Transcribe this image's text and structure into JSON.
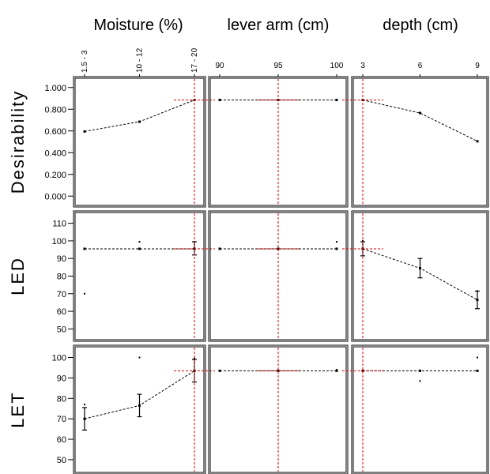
{
  "chart_data": {
    "type": "line",
    "title": "",
    "columns": [
      {
        "id": "moisture",
        "label": "Moisture (%)",
        "categories": [
          "1.5 - 3",
          "10 - 12",
          "17 - 20"
        ],
        "current": 2
      },
      {
        "id": "lever",
        "label": "lever arm (cm)",
        "categories": [
          "90",
          "95",
          "100"
        ],
        "current": 1
      },
      {
        "id": "depth",
        "label": "depth (cm)",
        "categories": [
          "3",
          "6",
          "9"
        ],
        "current": 0
      }
    ],
    "rows": [
      {
        "id": "desirability",
        "label": "Desirability",
        "ylim": [
          -0.1,
          1.1
        ],
        "ticks": [
          0.0,
          0.2,
          0.4,
          0.6,
          0.8,
          1.0
        ],
        "tick_labels": [
          "0.000",
          "0.200",
          "0.400",
          "0.600",
          "0.800",
          "1.000"
        ],
        "current": 0.885,
        "series": [
          {
            "column": "moisture",
            "values": [
              0.595,
              0.685,
              0.885
            ]
          },
          {
            "column": "lever",
            "values": [
              0.885,
              0.885,
              0.885
            ]
          },
          {
            "column": "depth",
            "values": [
              0.885,
              0.765,
              0.505
            ]
          }
        ]
      },
      {
        "id": "led",
        "label": "LED",
        "ylim": [
          43,
          117
        ],
        "ticks": [
          50,
          60,
          70,
          80,
          90,
          100,
          110
        ],
        "tick_labels": [
          "50",
          "60",
          "70",
          "80",
          "90",
          "100",
          "110"
        ],
        "current": 95.5,
        "series": [
          {
            "column": "moisture",
            "values": [
              95.5,
              95.5,
              95.5
            ],
            "errors": [
              null,
              null,
              [
                92,
                99.5
              ]
            ],
            "points": [
              [
                0,
                70
              ],
              [
                1,
                99.5
              ],
              [
                2,
                99.5
              ]
            ]
          },
          {
            "column": "lever",
            "values": [
              95.5,
              95.5,
              95.5
            ],
            "errors": [
              null,
              null,
              null
            ],
            "points": [
              [
                2,
                99.5
              ]
            ]
          },
          {
            "column": "depth",
            "values": [
              95.5,
              84.5,
              66.5
            ],
            "errors": [
              [
                91.5,
                99.5
              ],
              [
                79,
                90
              ],
              [
                61.5,
                71.5
              ]
            ],
            "points": [
              [
                0,
                100
              ],
              [
                2,
                71.5
              ]
            ]
          }
        ]
      },
      {
        "id": "let",
        "label": "LET",
        "ylim": [
          43,
          106
        ],
        "ticks": [
          50,
          60,
          70,
          80,
          90,
          100
        ],
        "tick_labels": [
          "50",
          "60",
          "70",
          "80",
          "90",
          "100"
        ],
        "current": 93.5,
        "series": [
          {
            "column": "moisture",
            "values": [
              70,
              76.5,
              93.5
            ],
            "errors": [
              [
                64.5,
                75.5
              ],
              [
                71,
                82
              ],
              [
                88,
                99
              ]
            ],
            "points": [
              [
                0,
                77
              ],
              [
                1,
                100
              ],
              [
                2,
                99.5
              ]
            ]
          },
          {
            "column": "lever",
            "values": [
              93.5,
              93.5,
              93.5
            ],
            "errors": [
              null,
              null,
              null
            ],
            "points": [
              [
                2,
                94
              ]
            ]
          },
          {
            "column": "depth",
            "values": [
              93.5,
              93.5,
              93.5
            ],
            "errors": [
              null,
              null,
              null
            ],
            "points": [
              [
                1,
                88.5
              ],
              [
                2,
                100
              ]
            ]
          }
        ]
      }
    ],
    "colors": {
      "line": "#000000",
      "crosshair": "#dd0000",
      "frame": "#000000"
    },
    "grid": false
  }
}
